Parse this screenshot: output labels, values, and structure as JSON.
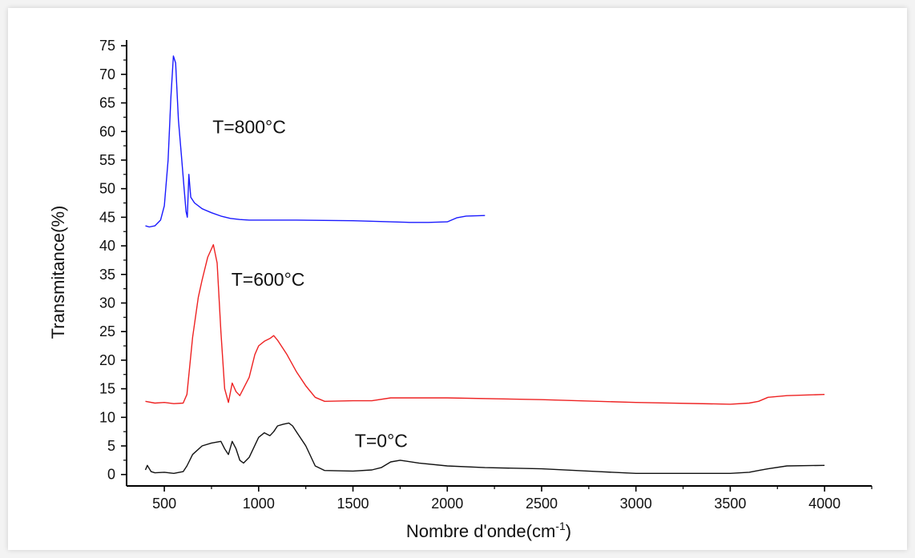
{
  "chart_data": {
    "type": "line",
    "xlabel": "Nombre d'onde(cm",
    "xlabel_sup": "-1",
    "xlabel_close": ")",
    "ylabel": "Transmitance(%)",
    "xlim": [
      300,
      4250
    ],
    "ylim": [
      -2,
      76
    ],
    "x_ticks": [
      500,
      1000,
      1500,
      2000,
      2500,
      3000,
      3500,
      4000
    ],
    "y_ticks": [
      0,
      5,
      10,
      15,
      20,
      25,
      30,
      35,
      40,
      45,
      50,
      55,
      60,
      65,
      70,
      75
    ],
    "grid": false,
    "series": [
      {
        "name": "T=800°C",
        "color": "#1a1aff",
        "x": [
          400,
          420,
          450,
          480,
          500,
          520,
          535,
          548,
          560,
          575,
          590,
          605,
          615,
          622,
          630,
          640,
          660,
          700,
          750,
          800,
          850,
          900,
          950,
          1000,
          1200,
          1500,
          1700,
          1800,
          1900,
          2000,
          2050,
          2100,
          2200
        ],
        "y": [
          43.5,
          43.3,
          43.5,
          44.5,
          47,
          55,
          66,
          73.2,
          72,
          62,
          56,
          50,
          46,
          45,
          52.5,
          48.5,
          47.5,
          46.5,
          45.8,
          45.2,
          44.8,
          44.6,
          44.5,
          44.5,
          44.5,
          44.4,
          44.2,
          44.1,
          44.1,
          44.2,
          44.9,
          45.2,
          45.3
        ]
      },
      {
        "name": "T=600°C",
        "color": "#ee2222",
        "x": [
          400,
          450,
          500,
          550,
          600,
          620,
          650,
          680,
          700,
          730,
          760,
          780,
          800,
          820,
          840,
          860,
          880,
          900,
          950,
          980,
          1000,
          1030,
          1060,
          1080,
          1100,
          1150,
          1200,
          1250,
          1300,
          1350,
          1500,
          1600,
          1700,
          1800,
          2000,
          2500,
          3000,
          3500,
          3600,
          3650,
          3700,
          3800,
          4000
        ],
        "y": [
          12.8,
          12.5,
          12.6,
          12.4,
          12.5,
          14,
          24,
          31,
          34,
          38,
          40.2,
          37,
          25,
          15,
          12.6,
          16,
          14.5,
          13.8,
          17,
          21,
          22.5,
          23.3,
          23.8,
          24.3,
          23.5,
          21,
          18,
          15.5,
          13.5,
          12.8,
          12.9,
          12.9,
          13.4,
          13.4,
          13.4,
          13.1,
          12.6,
          12.3,
          12.5,
          12.8,
          13.5,
          13.8,
          14
        ]
      },
      {
        "name": "T=0°C",
        "color": "#111111",
        "x": [
          400,
          410,
          430,
          450,
          500,
          550,
          600,
          620,
          650,
          700,
          750,
          800,
          820,
          840,
          860,
          880,
          900,
          920,
          950,
          1000,
          1030,
          1060,
          1080,
          1100,
          1130,
          1160,
          1180,
          1200,
          1250,
          1300,
          1350,
          1500,
          1600,
          1650,
          1700,
          1750,
          1850,
          2000,
          2200,
          2500,
          2800,
          3000,
          3500,
          3600,
          3650,
          3700,
          3800,
          4000
        ],
        "y": [
          0.8,
          1.6,
          0.5,
          0.3,
          0.4,
          0.2,
          0.5,
          1.5,
          3.5,
          5,
          5.5,
          5.8,
          4.5,
          3.5,
          5.8,
          4.5,
          2.5,
          2,
          3,
          6.5,
          7.3,
          6.8,
          7.5,
          8.5,
          8.8,
          9,
          8.5,
          7.5,
          5,
          1.5,
          0.7,
          0.6,
          0.8,
          1.2,
          2.2,
          2.5,
          2,
          1.5,
          1.2,
          1,
          0.5,
          0.2,
          0.2,
          0.4,
          0.7,
          1,
          1.5,
          1.6
        ]
      }
    ],
    "annotations": [
      {
        "text": "T=800°C",
        "x": 950,
        "y": 59.7
      },
      {
        "text": "T=600°C",
        "x": 1050,
        "y": 33
      },
      {
        "text": "T=0°C",
        "x": 1650,
        "y": 4.8
      }
    ]
  }
}
